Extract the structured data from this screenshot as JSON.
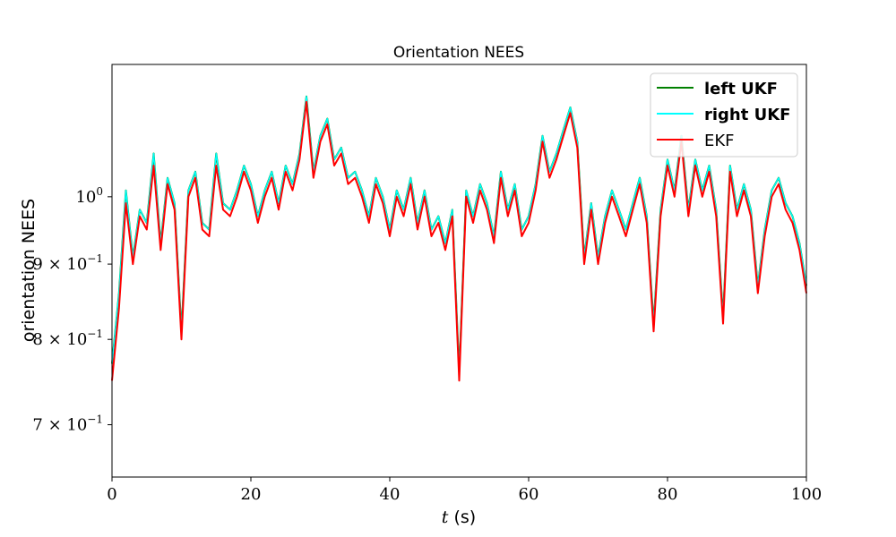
{
  "chart_data": {
    "type": "line",
    "title": "Orientation NEES",
    "xlabel": "t (s)",
    "xlabel_var": "t",
    "xlabel_unit": " (s)",
    "ylabel": "orientation NEES",
    "xlim": [
      0,
      100
    ],
    "ylim": [
      0.645,
      1.23
    ],
    "y_scale": "log",
    "x_ticks": [
      0,
      20,
      40,
      60,
      80,
      100
    ],
    "x_tick_labels": [
      "0",
      "20",
      "40",
      "60",
      "80",
      "100"
    ],
    "y_ticks": [
      {
        "value": 1.0,
        "base": "10",
        "exp": "0"
      },
      {
        "value": 0.9,
        "base": "9 × 10",
        "exp": "−1"
      },
      {
        "value": 0.8,
        "base": "8 × 10",
        "exp": "−1"
      },
      {
        "value": 0.7,
        "base": "7 × 10",
        "exp": "−1"
      }
    ],
    "grid": false,
    "legend_position": "top-right",
    "series": [
      {
        "name": "left UKF",
        "color": "#008000",
        "bold": true
      },
      {
        "name": "right UKF",
        "color": "#00ffff",
        "bold": true
      },
      {
        "name": "EKF",
        "color": "#ff0000",
        "bold": false
      }
    ],
    "x": [
      0,
      1,
      2,
      3,
      4,
      5,
      6,
      7,
      8,
      9,
      10,
      11,
      12,
      13,
      14,
      15,
      16,
      17,
      18,
      19,
      20,
      21,
      22,
      23,
      24,
      25,
      26,
      27,
      28,
      29,
      30,
      31,
      32,
      33,
      34,
      35,
      36,
      37,
      38,
      39,
      40,
      41,
      42,
      43,
      44,
      45,
      46,
      47,
      48,
      49,
      50,
      51,
      52,
      53,
      54,
      55,
      56,
      57,
      58,
      59,
      60,
      61,
      62,
      63,
      64,
      65,
      66,
      67,
      68,
      69,
      70,
      71,
      72,
      73,
      74,
      75,
      76,
      77,
      78,
      79,
      80,
      81,
      82,
      83,
      84,
      85,
      86,
      87,
      88,
      89,
      90,
      91,
      92,
      93,
      94,
      95,
      96,
      97,
      98,
      99,
      100
    ],
    "ekf_values": [
      0.75,
      0.84,
      0.99,
      0.9,
      0.97,
      0.95,
      1.05,
      0.92,
      1.02,
      0.98,
      0.8,
      1.0,
      1.03,
      0.95,
      0.94,
      1.05,
      0.98,
      0.97,
      1.0,
      1.04,
      1.01,
      0.96,
      1.0,
      1.03,
      0.98,
      1.04,
      1.01,
      1.06,
      1.16,
      1.03,
      1.09,
      1.12,
      1.05,
      1.07,
      1.02,
      1.03,
      1.0,
      0.96,
      1.02,
      0.99,
      0.94,
      1.0,
      0.97,
      1.02,
      0.95,
      1.0,
      0.94,
      0.96,
      0.92,
      0.97,
      0.75,
      1.0,
      0.96,
      1.01,
      0.98,
      0.93,
      1.03,
      0.97,
      1.01,
      0.94,
      0.96,
      1.01,
      1.09,
      1.03,
      1.06,
      1.1,
      1.14,
      1.08,
      0.9,
      0.98,
      0.9,
      0.96,
      1.0,
      0.97,
      0.94,
      0.98,
      1.02,
      0.96,
      0.81,
      0.97,
      1.05,
      1.0,
      1.09,
      0.97,
      1.05,
      1.0,
      1.04,
      0.97,
      0.82,
      1.04,
      0.97,
      1.01,
      0.97,
      0.86,
      0.94,
      1.0,
      1.02,
      0.98,
      0.96,
      0.92,
      0.86
    ],
    "left_ukf_values": [
      0.77,
      0.86,
      1.01,
      0.91,
      0.98,
      0.96,
      1.07,
      0.93,
      1.03,
      0.99,
      0.81,
      1.01,
      1.04,
      0.96,
      0.95,
      1.07,
      0.99,
      0.98,
      1.01,
      1.05,
      1.02,
      0.97,
      1.01,
      1.04,
      0.99,
      1.05,
      1.02,
      1.07,
      1.17,
      1.04,
      1.1,
      1.13,
      1.06,
      1.08,
      1.03,
      1.04,
      1.01,
      0.97,
      1.03,
      1.0,
      0.95,
      1.01,
      0.98,
      1.03,
      0.96,
      1.01,
      0.95,
      0.97,
      0.93,
      0.98,
      0.76,
      1.01,
      0.97,
      1.02,
      0.99,
      0.94,
      1.04,
      0.98,
      1.02,
      0.95,
      0.97,
      1.02,
      1.1,
      1.04,
      1.07,
      1.11,
      1.15,
      1.09,
      0.91,
      0.99,
      0.91,
      0.97,
      1.01,
      0.98,
      0.95,
      0.99,
      1.03,
      0.97,
      0.82,
      0.98,
      1.06,
      1.01,
      1.1,
      0.98,
      1.06,
      1.01,
      1.05,
      0.98,
      0.83,
      1.05,
      0.98,
      1.02,
      0.98,
      0.87,
      0.95,
      1.01,
      1.03,
      0.99,
      0.97,
      0.93,
      0.87
    ]
  }
}
